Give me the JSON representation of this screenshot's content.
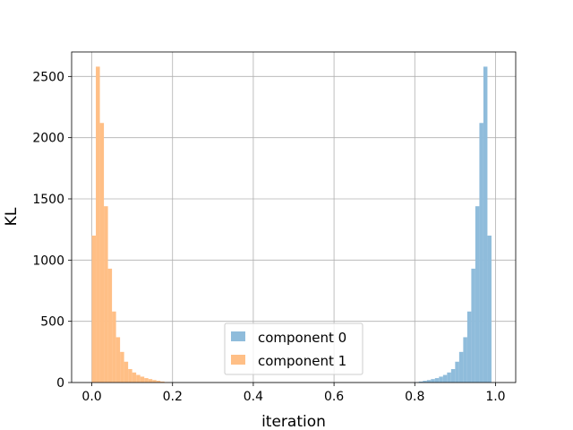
{
  "chart_data": {
    "type": "histogram",
    "xlabel": "iteration",
    "ylabel": "KL",
    "xlim": [
      -0.05,
      1.05
    ],
    "ylim": [
      0,
      2700
    ],
    "xticks": [
      "0.0",
      "0.2",
      "0.4",
      "0.6",
      "0.8",
      "1.0"
    ],
    "yticks": [
      "0",
      "500",
      "1000",
      "1500",
      "2000",
      "2500"
    ],
    "grid": true,
    "legend_position": "bottom-center",
    "bin_width": 0.01,
    "series": [
      {
        "name": "component 0",
        "color": "#8fbcdb",
        "bins_start": [
          0.8,
          0.81,
          0.82,
          0.83,
          0.84,
          0.85,
          0.86,
          0.87,
          0.88,
          0.89,
          0.9,
          0.91,
          0.92,
          0.93,
          0.94,
          0.95,
          0.96,
          0.97,
          0.98,
          0.99
        ],
        "values": [
          3,
          8,
          14,
          20,
          28,
          36,
          48,
          62,
          82,
          110,
          170,
          250,
          370,
          580,
          930,
          1440,
          2120,
          2580,
          1200,
          0
        ]
      },
      {
        "name": "component 1",
        "color": "#ffbf86",
        "bins_start": [
          0.0,
          0.01,
          0.02,
          0.03,
          0.04,
          0.05,
          0.06,
          0.07,
          0.08,
          0.09,
          0.1,
          0.11,
          0.12,
          0.13,
          0.14,
          0.15,
          0.16,
          0.17,
          0.18,
          0.19
        ],
        "values": [
          1200,
          2580,
          2120,
          1440,
          930,
          580,
          370,
          250,
          170,
          110,
          82,
          62,
          48,
          36,
          28,
          20,
          14,
          8,
          3,
          0
        ]
      }
    ]
  }
}
